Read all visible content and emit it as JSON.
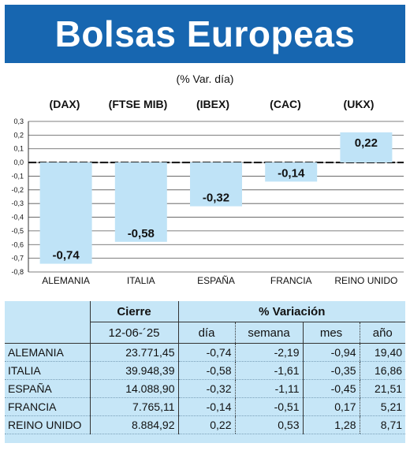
{
  "title": "Bolsas Europeas",
  "subtitle": "(% Var. día)",
  "index_labels": [
    "(DAX)",
    "(FTSE MIB)",
    "(IBEX)",
    "(CAC)",
    "(UKX)"
  ],
  "chart_data": {
    "type": "bar",
    "categories": [
      "ALEMANIA",
      "ITALIA",
      "ESPAÑA",
      "FRANCIA",
      "REINO UNIDO"
    ],
    "values": [
      -0.74,
      -0.58,
      -0.32,
      -0.14,
      0.22
    ],
    "value_labels": [
      "-0,74",
      "-0,58",
      "-0,32",
      "-0,14",
      "0,22"
    ],
    "ylim": [
      -0.8,
      0.3
    ],
    "yticks": [
      "0,3",
      "0,2",
      "0,1",
      "0,0",
      "-0,1",
      "-0,2",
      "-0,3",
      "-0,4",
      "-0,5",
      "-0,6",
      "-0,7",
      "-0,8"
    ],
    "grid": true,
    "bar_color": "#bfe3f7"
  },
  "table": {
    "group_headers": {
      "cierre": "Cierre",
      "variacion": "% Variación"
    },
    "sub_headers": {
      "date": "12-06-´25",
      "dia": "día",
      "semana": "semana",
      "mes": "mes",
      "ano": "año"
    },
    "rows": [
      {
        "name": "ALEMANIA",
        "cierre": "23.771,45",
        "dia": "-0,74",
        "semana": "-2,19",
        "mes": "-0,94",
        "ano": "19,40"
      },
      {
        "name": "ITALIA",
        "cierre": "39.948,39",
        "dia": "-0,58",
        "semana": "-1,61",
        "mes": "-0,35",
        "ano": "16,86"
      },
      {
        "name": "ESPAÑA",
        "cierre": "14.088,90",
        "dia": "-0,32",
        "semana": "-1,11",
        "mes": "-0,45",
        "ano": "21,51"
      },
      {
        "name": "FRANCIA",
        "cierre": "7.765,11",
        "dia": "-0,14",
        "semana": "-0,51",
        "mes": "0,17",
        "ano": "5,21"
      },
      {
        "name": "REINO UNIDO",
        "cierre": "8.884,92",
        "dia": "0,22",
        "semana": "0,53",
        "mes": "1,28",
        "ano": "8,71"
      }
    ]
  },
  "colors": {
    "banner": "#1766b0",
    "table_bg": "#c6e6f7"
  }
}
